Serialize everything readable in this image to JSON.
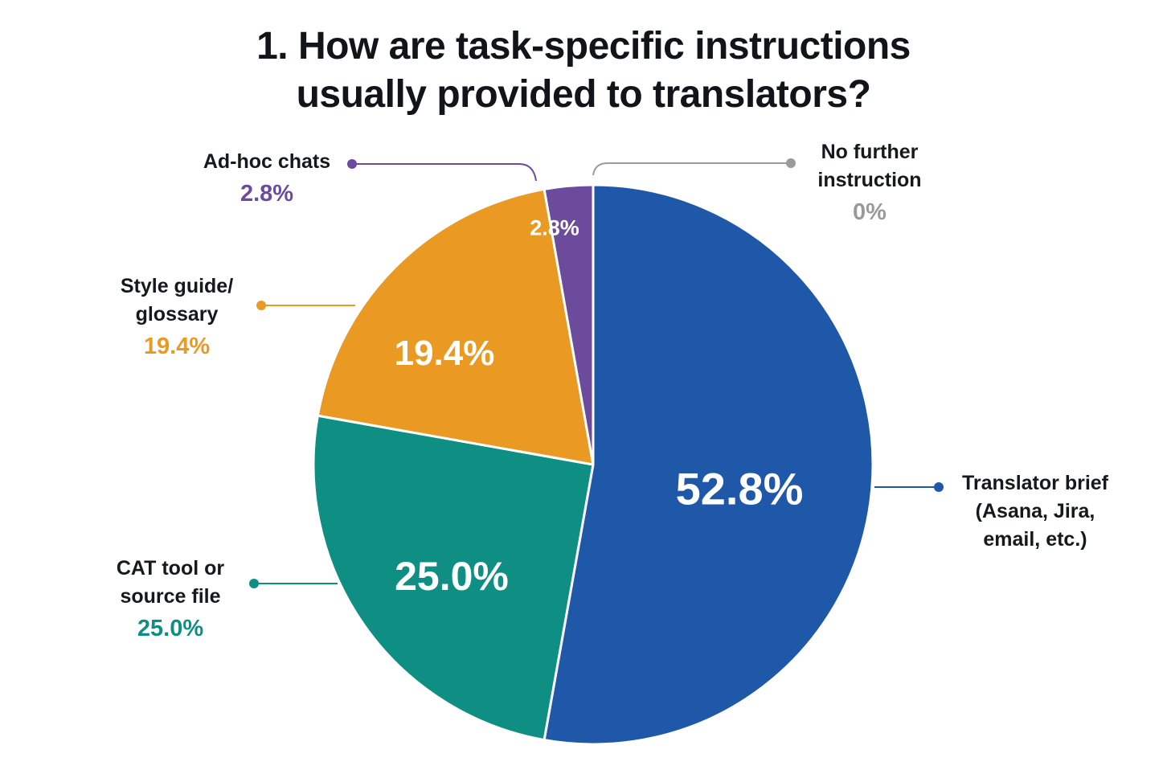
{
  "title_line1": "1. How are task-specific instructions",
  "title_line2": "usually provided to translators?",
  "colors": {
    "background": "#ffffff",
    "leader_line_gray": "#9a9a9a"
  },
  "labels": {
    "brief": {
      "line1": "Translator brief",
      "line2": "(Asana, Jira,",
      "line3": "email, etc.)",
      "slice_pct": "52.8%"
    },
    "cat": {
      "line1": "CAT tool or",
      "line2": "source file",
      "pct": "25.0%",
      "slice_pct": "25.0%"
    },
    "style": {
      "line1": "Style guide/",
      "line2": "glossary",
      "pct": "19.4%",
      "slice_pct": "19.4%"
    },
    "adhoc": {
      "line1": "Ad-hoc chats",
      "pct": "2.8%",
      "slice_pct": "2.8%"
    },
    "nofurther": {
      "line1": "No further",
      "line2": "instruction",
      "pct": "0%"
    }
  },
  "chart_data": {
    "type": "pie",
    "title": "1. How are task-specific instructions usually provided to translators?",
    "start": "12 o'clock, clockwise",
    "slices": [
      {
        "label": "Translator brief (Asana, Jira, email, etc.)",
        "value": 52.8,
        "color": "#1f58a8"
      },
      {
        "label": "CAT tool or source file",
        "value": 25.0,
        "color": "#0f8f83"
      },
      {
        "label": "Style guide/ glossary",
        "value": 19.4,
        "color": "#ea9a23"
      },
      {
        "label": "Ad-hoc chats",
        "value": 2.8,
        "color": "#6c4a9c"
      },
      {
        "label": "No further instruction",
        "value": 0,
        "color": "#9a9a9a"
      }
    ]
  }
}
